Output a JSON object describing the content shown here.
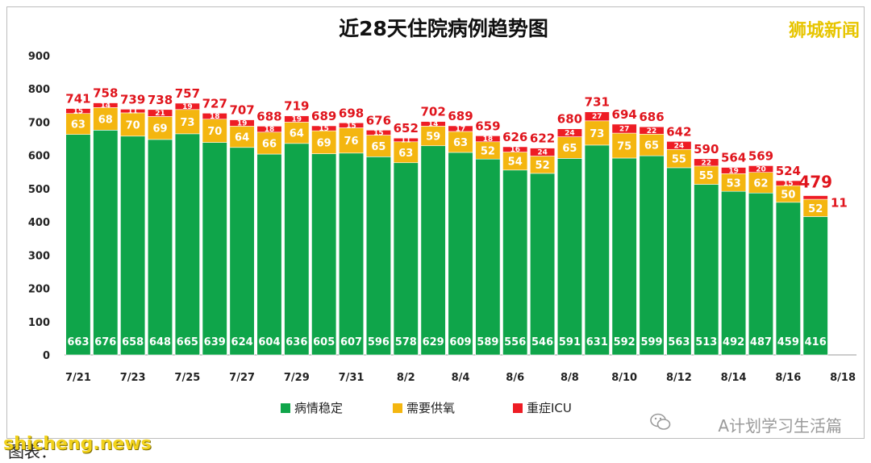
{
  "chart_data": {
    "type": "bar",
    "stacked": true,
    "title": "近28天住院病例趋势图",
    "ylim": [
      0,
      900
    ],
    "yticks": [
      0,
      100,
      200,
      300,
      400,
      500,
      600,
      700,
      800,
      900
    ],
    "xtick_labels": [
      "7/21",
      "7/23",
      "7/25",
      "7/27",
      "7/29",
      "7/31",
      "8/2",
      "8/4",
      "8/6",
      "8/8",
      "8/10",
      "8/12",
      "8/14",
      "8/16",
      "8/18"
    ],
    "legend_position": "bottom",
    "series": [
      {
        "name": "病情稳定",
        "color": "#0fa54a",
        "values": [
          663,
          676,
          658,
          648,
          665,
          639,
          624,
          604,
          636,
          605,
          607,
          596,
          578,
          629,
          609,
          589,
          556,
          546,
          591,
          631,
          592,
          599,
          563,
          513,
          492,
          487,
          459,
          416
        ]
      },
      {
        "name": "需要供氧",
        "color": "#f4b610",
        "values": [
          63,
          68,
          70,
          69,
          73,
          70,
          64,
          66,
          64,
          69,
          76,
          65,
          63,
          59,
          63,
          52,
          54,
          52,
          65,
          73,
          75,
          65,
          55,
          55,
          53,
          62,
          50,
          52
        ]
      },
      {
        "name": "重症ICU",
        "color": "#ee1c24",
        "values": [
          15,
          14,
          11,
          21,
          19,
          18,
          19,
          18,
          19,
          15,
          15,
          15,
          11,
          14,
          17,
          18,
          16,
          24,
          24,
          27,
          27,
          22,
          24,
          22,
          19,
          20,
          15,
          11
        ]
      }
    ],
    "totals": [
      741,
      758,
      739,
      738,
      757,
      727,
      707,
      688,
      719,
      689,
      698,
      676,
      652,
      702,
      689,
      659,
      626,
      622,
      680,
      731,
      694,
      686,
      642,
      590,
      564,
      569,
      524,
      479
    ],
    "last_icu_label": "11"
  },
  "watermarks": {
    "brand_top_right": "狮城新闻",
    "bottom_right": "A计划学习生活篇",
    "bottom_left": "图表：",
    "site": "shicheng.news"
  }
}
